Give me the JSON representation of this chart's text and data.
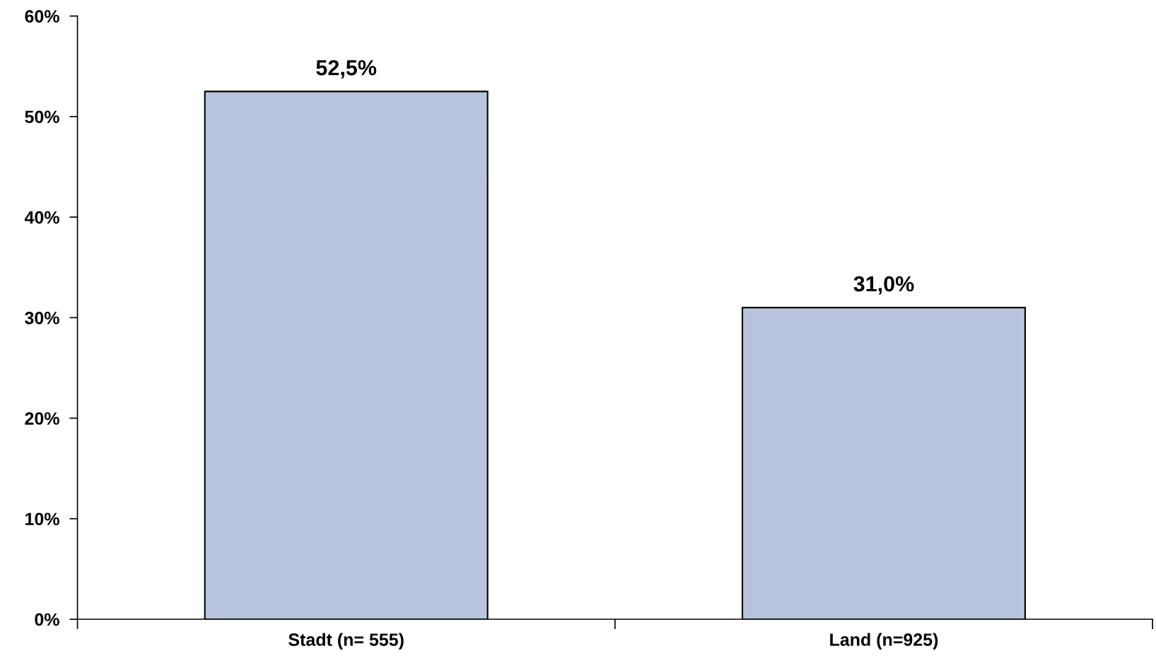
{
  "chart_data": {
    "type": "bar",
    "categories": [
      "Stadt (n= 555)",
      "Land (n=925)"
    ],
    "values": [
      52.5,
      31.0
    ],
    "value_labels": [
      "52,5%",
      "31,0%"
    ],
    "color": "#b8c4de",
    "ylim": [
      0,
      60
    ],
    "yticks": [
      {
        "value": 0,
        "label": "0%"
      },
      {
        "value": 10,
        "label": "10%"
      },
      {
        "value": 20,
        "label": "20%"
      },
      {
        "value": 30,
        "label": "30%"
      },
      {
        "value": 40,
        "label": "40%"
      },
      {
        "value": 50,
        "label": "50%"
      },
      {
        "value": 60,
        "label": "60%"
      }
    ],
    "grid": false,
    "legend": false
  }
}
